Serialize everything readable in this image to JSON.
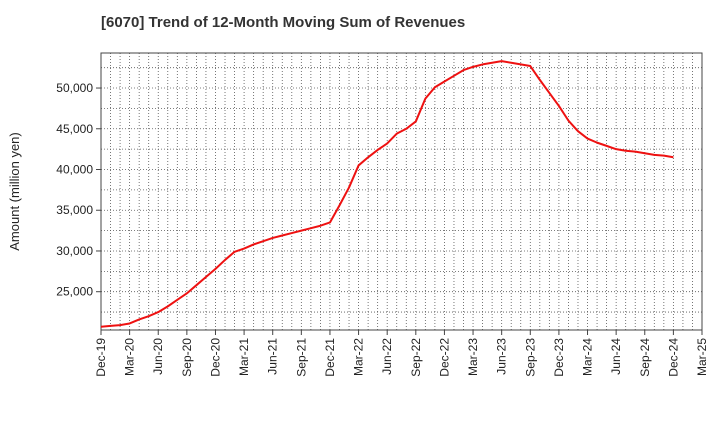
{
  "chart_data": {
    "type": "line",
    "title": "[6070]  Trend of 12-Month Moving Sum of Revenues",
    "xlabel": "",
    "ylabel": "Amount (million yen)",
    "x_tick_labels": [
      "Dec-19",
      "Mar-20",
      "Jun-20",
      "Sep-20",
      "Dec-20",
      "Mar-21",
      "Jun-21",
      "Sep-21",
      "Dec-21",
      "Mar-22",
      "Jun-22",
      "Sep-22",
      "Dec-22",
      "Mar-23",
      "Jun-23",
      "Sep-23",
      "Dec-23",
      "Mar-24",
      "Jun-24",
      "Sep-24",
      "Dec-24",
      "Mar-25"
    ],
    "y_ticks": [
      25000,
      30000,
      35000,
      40000,
      45000,
      50000
    ],
    "y_tick_labels": [
      "25,000",
      "30,000",
      "35,000",
      "40,000",
      "45,000",
      "50,000"
    ],
    "ylim": [
      20300,
      54300
    ],
    "grid": true,
    "line_color": "#ee1111",
    "series": [
      {
        "x": [
          "Dec-19",
          "Jan-20",
          "Feb-20",
          "Mar-20",
          "Apr-20",
          "May-20",
          "Jun-20",
          "Jul-20",
          "Aug-20",
          "Sep-20",
          "Oct-20",
          "Nov-20",
          "Dec-20",
          "Jan-21",
          "Feb-21",
          "Mar-21",
          "Apr-21",
          "May-21",
          "Jun-21",
          "Jul-21",
          "Aug-21",
          "Sep-21",
          "Oct-21",
          "Nov-21",
          "Dec-21",
          "Jan-22",
          "Feb-22",
          "Mar-22",
          "Apr-22",
          "May-22",
          "Jun-22",
          "Jul-22",
          "Aug-22",
          "Sep-22",
          "Oct-22",
          "Nov-22",
          "Dec-22",
          "Jan-23",
          "Feb-23",
          "Mar-23",
          "Apr-23",
          "May-23",
          "Jun-23",
          "Jul-23",
          "Aug-23",
          "Sep-23",
          "Oct-23",
          "Nov-23",
          "Dec-23",
          "Jan-24",
          "Feb-24",
          "Mar-24",
          "Apr-24",
          "May-24",
          "Jun-24",
          "Jul-24",
          "Aug-24",
          "Sep-24",
          "Oct-24",
          "Nov-24",
          "Dec-24"
        ],
        "values": [
          20700,
          20800,
          20900,
          21100,
          21600,
          22000,
          22500,
          23200,
          24000,
          24800,
          25800,
          26800,
          27800,
          28900,
          29900,
          30300,
          30800,
          31200,
          31600,
          31900,
          32200,
          32500,
          32800,
          33100,
          33500,
          35600,
          37800,
          40500,
          41500,
          42400,
          43200,
          44400,
          45000,
          45900,
          48700,
          50100,
          50800,
          51500,
          52200,
          52600,
          52900,
          53100,
          53300,
          53100,
          52900,
          52700,
          51000,
          49400,
          47800,
          46000,
          44700,
          43800,
          43300,
          42900,
          42500,
          42300,
          42200,
          42000,
          41800,
          41700,
          41500
        ]
      }
    ]
  }
}
